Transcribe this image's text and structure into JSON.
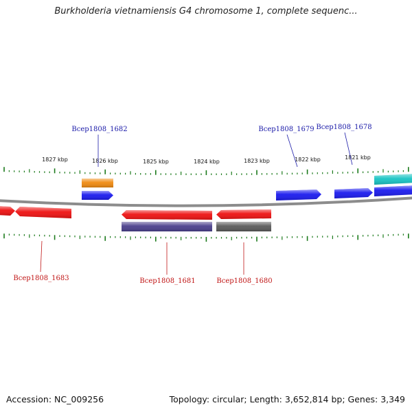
{
  "title": "Burkholderia vietnamiensis G4 chromosome 1, complete sequenc...",
  "footer": {
    "accession_label": "Accession:",
    "accession_value": "NC_009256",
    "stats": "Topology: circular; Length: 3,652,814 bp; Genes: 3,349"
  },
  "colors": {
    "ticks": "#1b7a1b",
    "backbone": "#8c8c8c",
    "forward_label": "#1a1aa8",
    "reverse_label": "#c01515"
  },
  "ruler_labels": [
    {
      "text": "1827 kbp",
      "kbp": 1827
    },
    {
      "text": "1826 kbp",
      "kbp": 1826
    },
    {
      "text": "1825 kbp",
      "kbp": 1825
    },
    {
      "text": "1824 kbp",
      "kbp": 1824
    },
    {
      "text": "1823 kbp",
      "kbp": 1823
    },
    {
      "text": "1822 kbp",
      "kbp": 1822
    },
    {
      "text": "1821 kbp",
      "kbp": 1821
    }
  ],
  "features": {
    "forward": [
      {
        "id": "f_orange",
        "color": "#f08a10",
        "label": ""
      },
      {
        "id": "f_blue_1682",
        "color": "#1a1aee",
        "label": "Bcep1808_1682"
      },
      {
        "id": "f_blue_1679",
        "color": "#1a1aee",
        "label": "Bcep1808_1679"
      },
      {
        "id": "f_blue_1678",
        "color": "#1a1aee",
        "label": "Bcep1808_1678"
      },
      {
        "id": "f_blue_edge",
        "color": "#1a1aee",
        "label": ""
      },
      {
        "id": "f_cyan",
        "color": "#18c4c4",
        "label": ""
      }
    ],
    "reverse": [
      {
        "id": "r_red_edge",
        "color": "#ee1111",
        "label": ""
      },
      {
        "id": "r_red_1683",
        "color": "#ee1111",
        "label": "Bcep1808_1683"
      },
      {
        "id": "r_red_1681",
        "color": "#ee1111",
        "label": "Bcep1808_1681"
      },
      {
        "id": "r_purple",
        "color": "#4a3f8c",
        "label": ""
      },
      {
        "id": "r_red_1680",
        "color": "#ee1111",
        "label": "Bcep1808_1680"
      },
      {
        "id": "r_gray",
        "color": "#5a5a5a",
        "label": ""
      }
    ]
  }
}
